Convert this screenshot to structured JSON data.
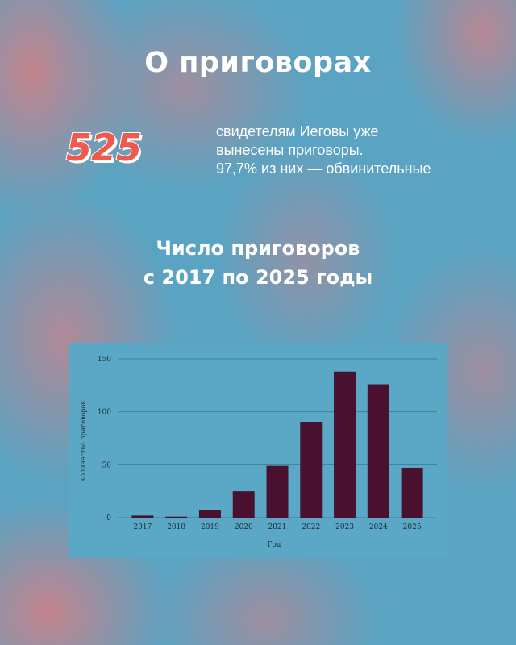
{
  "header": {
    "title": "О приговорах"
  },
  "stat": {
    "number": "525",
    "lines": [
      "свидетелям Иеговы уже",
      "вынесены приговоры.",
      "97,7% из них — обвинительные"
    ]
  },
  "chart_section": {
    "title_lines": [
      "Число приговоров",
      "с 2017 по 2025 годы"
    ]
  },
  "colors": {
    "bar": "#4a1030",
    "number": "#ef5a4f",
    "grid": "#3f7f95",
    "chart_bg": "#5aa8c6"
  },
  "chart_data": {
    "type": "bar",
    "categories": [
      "2017",
      "2018",
      "2019",
      "2020",
      "2021",
      "2022",
      "2023",
      "2024",
      "2025"
    ],
    "values": [
      2,
      1,
      7,
      25,
      49,
      90,
      138,
      126,
      47
    ],
    "xlabel": "Год",
    "ylabel": "Количество приговоров",
    "ylim": [
      0,
      150
    ],
    "yticks": [
      0,
      50,
      100,
      150
    ],
    "grid": true,
    "title": ""
  }
}
